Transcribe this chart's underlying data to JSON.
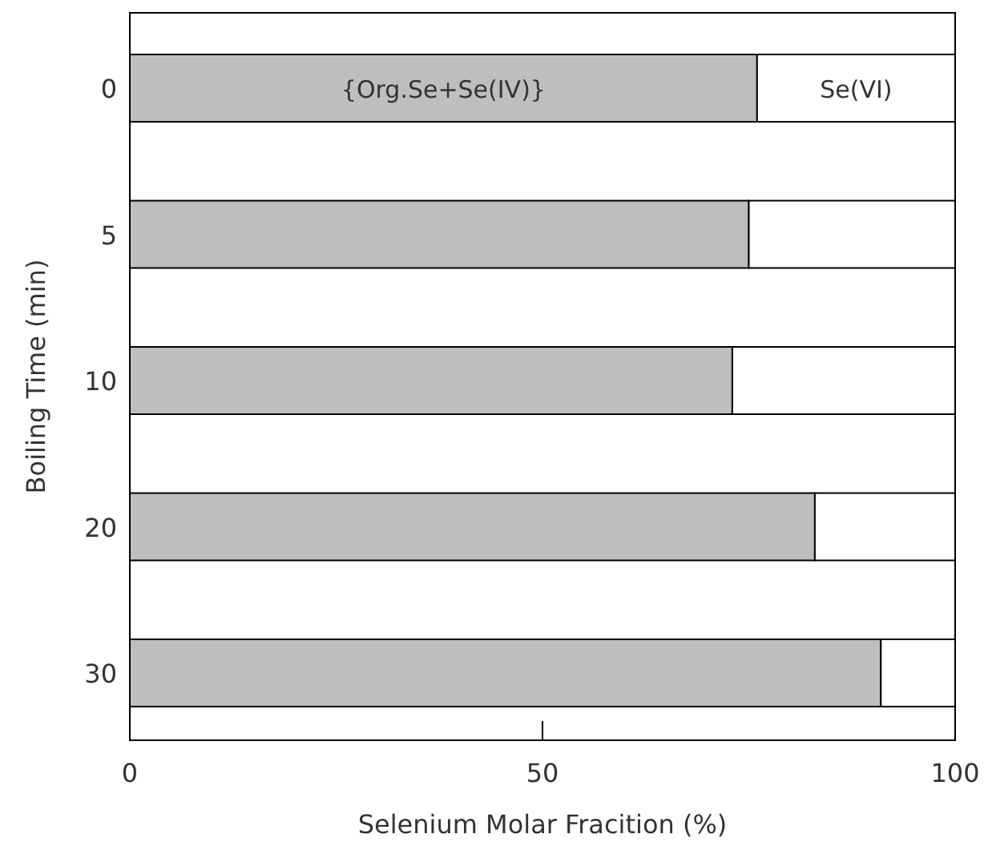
{
  "chart_data": {
    "type": "bar",
    "orientation": "horizontal",
    "stacked": true,
    "xlabel": "Selenium Molar Fracition (%)",
    "ylabel": "Boiling Time (min)",
    "categories": [
      "0",
      "5",
      "10",
      "20",
      "30"
    ],
    "series": [
      {
        "name": "{Org.Se+Se(IV)}",
        "color": "#bcbec0",
        "values": [
          76,
          75,
          73,
          83,
          91
        ]
      },
      {
        "name": "Se(VI)",
        "color": "#ffffff",
        "values": [
          24,
          25,
          27,
          17,
          9
        ]
      }
    ],
    "xlim": [
      0,
      100
    ],
    "xticks": [
      0,
      50,
      100
    ],
    "grid": false
  }
}
